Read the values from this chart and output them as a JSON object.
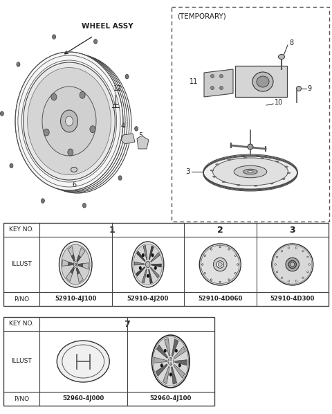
{
  "bg_color": "#ffffff",
  "line_color": "#222222",
  "table1": {
    "key_no_label": "KEY NO.",
    "col1_key": "1",
    "col2_key": "2",
    "col3_key": "3",
    "col1_pno": "52910-4J100",
    "col2_pno": "52910-4J200",
    "col3_pno": "52910-4D060",
    "col4_pno": "52910-4D300",
    "illust_label": "ILLUST",
    "pno_label": "P/NO"
  },
  "table2": {
    "key_no_label": "KEY NO.",
    "col1_key": "7",
    "col1_pno": "52960-4J000",
    "col2_pno": "52960-4J100",
    "illust_label": "ILLUST",
    "pno_label": "P/NO"
  },
  "wheel_assy_label": "WHEEL ASSY",
  "temporary_label": "(TEMPORARY)",
  "part_numbers_left": [
    "12",
    "4",
    "5",
    "6"
  ],
  "part_numbers_right": [
    "8",
    "9",
    "10",
    "11",
    "3"
  ]
}
